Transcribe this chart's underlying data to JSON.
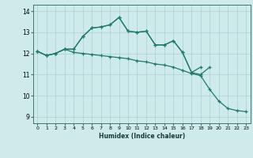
{
  "xlabel": "Humidex (Indice chaleur)",
  "x_values": [
    0,
    1,
    2,
    3,
    4,
    5,
    6,
    7,
    8,
    9,
    10,
    11,
    12,
    13,
    14,
    15,
    16,
    17,
    18,
    19,
    20,
    21,
    22,
    23
  ],
  "line1": [
    12.1,
    11.9,
    12.0,
    12.2,
    12.2,
    12.8,
    13.2,
    13.25,
    13.35,
    13.7,
    13.05,
    13.0,
    13.05,
    12.4,
    12.4,
    12.6,
    12.05,
    11.1,
    11.35,
    null,
    null,
    null,
    null,
    null
  ],
  "line2": [
    12.1,
    11.9,
    12.0,
    12.2,
    12.2,
    12.8,
    13.2,
    13.25,
    13.35,
    13.7,
    13.05,
    13.0,
    13.05,
    12.4,
    12.4,
    12.6,
    12.05,
    11.1,
    11.0,
    11.35,
    null,
    null,
    null,
    null
  ],
  "line3": [
    12.1,
    11.9,
    12.0,
    12.2,
    12.05,
    12.0,
    11.95,
    11.9,
    11.85,
    11.8,
    11.75,
    11.65,
    11.6,
    11.5,
    11.45,
    11.35,
    11.2,
    11.05,
    10.95,
    10.3,
    9.75,
    9.4,
    9.3,
    9.25
  ],
  "line_color": "#1e7b6a",
  "bg_color": "#ceeaea",
  "grid_color": "#aacfcf",
  "axis_color": "#3a7a6a",
  "ylim": [
    8.7,
    14.3
  ],
  "xlim": [
    -0.5,
    23.5
  ],
  "yticks": [
    9,
    10,
    11,
    12,
    13,
    14
  ],
  "xticks": [
    0,
    1,
    2,
    3,
    4,
    5,
    6,
    7,
    8,
    9,
    10,
    11,
    12,
    13,
    14,
    15,
    16,
    17,
    18,
    19,
    20,
    21,
    22,
    23
  ]
}
